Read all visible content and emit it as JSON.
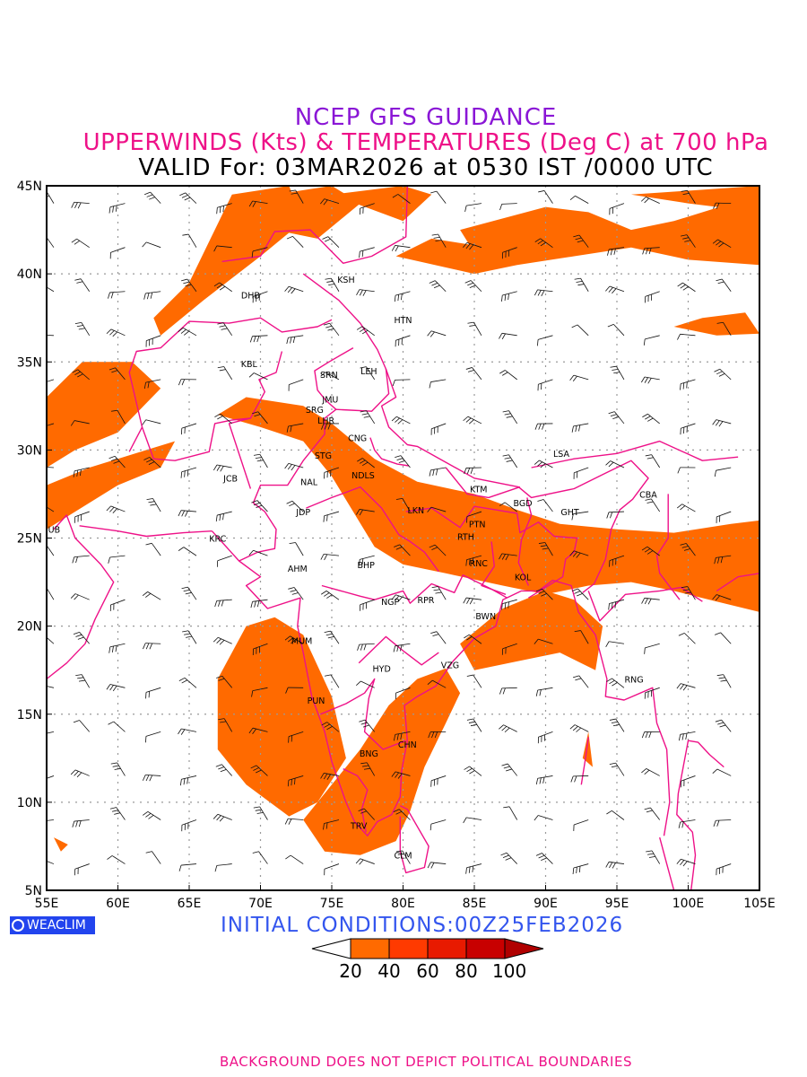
{
  "title": {
    "line1": "NCEP GFS GUIDANCE",
    "line2": "UPPERWINDS (Kts) & TEMPERATURES (Deg C) at 700 hPa",
    "line3": "VALID For: 03MAR2026 at 0530 IST /0000 UTC"
  },
  "colors": {
    "title1": "#8a16d6",
    "title2": "#ee1188",
    "title3": "#000000",
    "boundary": "#ee1188",
    "shade": "#ff6a00",
    "grid": "#999999",
    "init": "#3355ee",
    "footer": "#ee1188",
    "temp_label": "#2233dd"
  },
  "map": {
    "lon_range": [
      55,
      105
    ],
    "lat_range": [
      5,
      45
    ],
    "lon_ticks": [
      "55E",
      "60E",
      "65E",
      "70E",
      "75E",
      "80E",
      "85E",
      "90E",
      "95E",
      "100E",
      "105E"
    ],
    "lat_ticks": [
      "5N",
      "10N",
      "15N",
      "20N",
      "25N",
      "30N",
      "35N",
      "40N",
      "45N"
    ],
    "stations": [
      {
        "code": "KSH",
        "lon": 76.0,
        "lat": 39.5
      },
      {
        "code": "HTN",
        "lon": 80.0,
        "lat": 37.2
      },
      {
        "code": "DHB",
        "lon": 69.3,
        "lat": 38.6
      },
      {
        "code": "KBL",
        "lon": 69.2,
        "lat": 34.7
      },
      {
        "code": "SRN",
        "lon": 74.8,
        "lat": 34.1
      },
      {
        "code": "LEH",
        "lon": 77.6,
        "lat": 34.3
      },
      {
        "code": "JMU",
        "lon": 74.9,
        "lat": 32.7
      },
      {
        "code": "SRG",
        "lon": 73.8,
        "lat": 32.1
      },
      {
        "code": "LHR",
        "lon": 74.6,
        "lat": 31.5
      },
      {
        "code": "CNG",
        "lon": 76.8,
        "lat": 30.5
      },
      {
        "code": "STG",
        "lon": 74.4,
        "lat": 29.5
      },
      {
        "code": "LSA",
        "lon": 91.1,
        "lat": 29.6
      },
      {
        "code": "NDLS",
        "lon": 77.2,
        "lat": 28.4
      },
      {
        "code": "JCB",
        "lon": 67.9,
        "lat": 28.2
      },
      {
        "code": "NAL",
        "lon": 73.4,
        "lat": 28.0
      },
      {
        "code": "KTM",
        "lon": 85.3,
        "lat": 27.6
      },
      {
        "code": "CBA",
        "lon": 97.2,
        "lat": 27.3
      },
      {
        "code": "LKN",
        "lon": 80.9,
        "lat": 26.4
      },
      {
        "code": "BGD",
        "lon": 88.4,
        "lat": 26.8
      },
      {
        "code": "GHT",
        "lon": 91.7,
        "lat": 26.3
      },
      {
        "code": "JDP",
        "lon": 73.0,
        "lat": 26.3
      },
      {
        "code": "DUB",
        "lon": 55.3,
        "lat": 25.3
      },
      {
        "code": "PTN",
        "lon": 85.2,
        "lat": 25.6
      },
      {
        "code": "KRC",
        "lon": 67.0,
        "lat": 24.8
      },
      {
        "code": "RTH",
        "lon": 84.4,
        "lat": 24.9
      },
      {
        "code": "BHP",
        "lon": 77.4,
        "lat": 23.3
      },
      {
        "code": "RNC",
        "lon": 85.3,
        "lat": 23.4
      },
      {
        "code": "AHM",
        "lon": 72.6,
        "lat": 23.1
      },
      {
        "code": "KOL",
        "lon": 88.4,
        "lat": 22.6
      },
      {
        "code": "NGP",
        "lon": 79.1,
        "lat": 21.2
      },
      {
        "code": "RPR",
        "lon": 81.6,
        "lat": 21.3
      },
      {
        "code": "BWN",
        "lon": 85.8,
        "lat": 20.4
      },
      {
        "code": "MUM",
        "lon": 72.9,
        "lat": 19.0
      },
      {
        "code": "HYD",
        "lon": 78.5,
        "lat": 17.4
      },
      {
        "code": "VZG",
        "lon": 83.3,
        "lat": 17.6
      },
      {
        "code": "RNG",
        "lon": 96.2,
        "lat": 16.8
      },
      {
        "code": "PUN",
        "lon": 73.9,
        "lat": 15.6
      },
      {
        "code": "CHN",
        "lon": 80.3,
        "lat": 13.1
      },
      {
        "code": "BNG",
        "lon": 77.6,
        "lat": 12.6
      },
      {
        "code": "TRV",
        "lon": 76.9,
        "lat": 8.5
      },
      {
        "code": "CLM",
        "lon": 80.0,
        "lat": 6.8
      }
    ]
  },
  "initial_conditions": "INITIAL CONDITIONS:00Z25FEB2026",
  "logo_text": "WEACLIM",
  "colorbar": {
    "labels": [
      "20",
      "40",
      "60",
      "80",
      "100"
    ],
    "colors": [
      "#ff6a00",
      "#ff3a00",
      "#e81a00",
      "#c80000",
      "#b00000"
    ]
  },
  "footer": "BACKGROUND DOES NOT DEPICT POLITICAL BOUNDARIES"
}
